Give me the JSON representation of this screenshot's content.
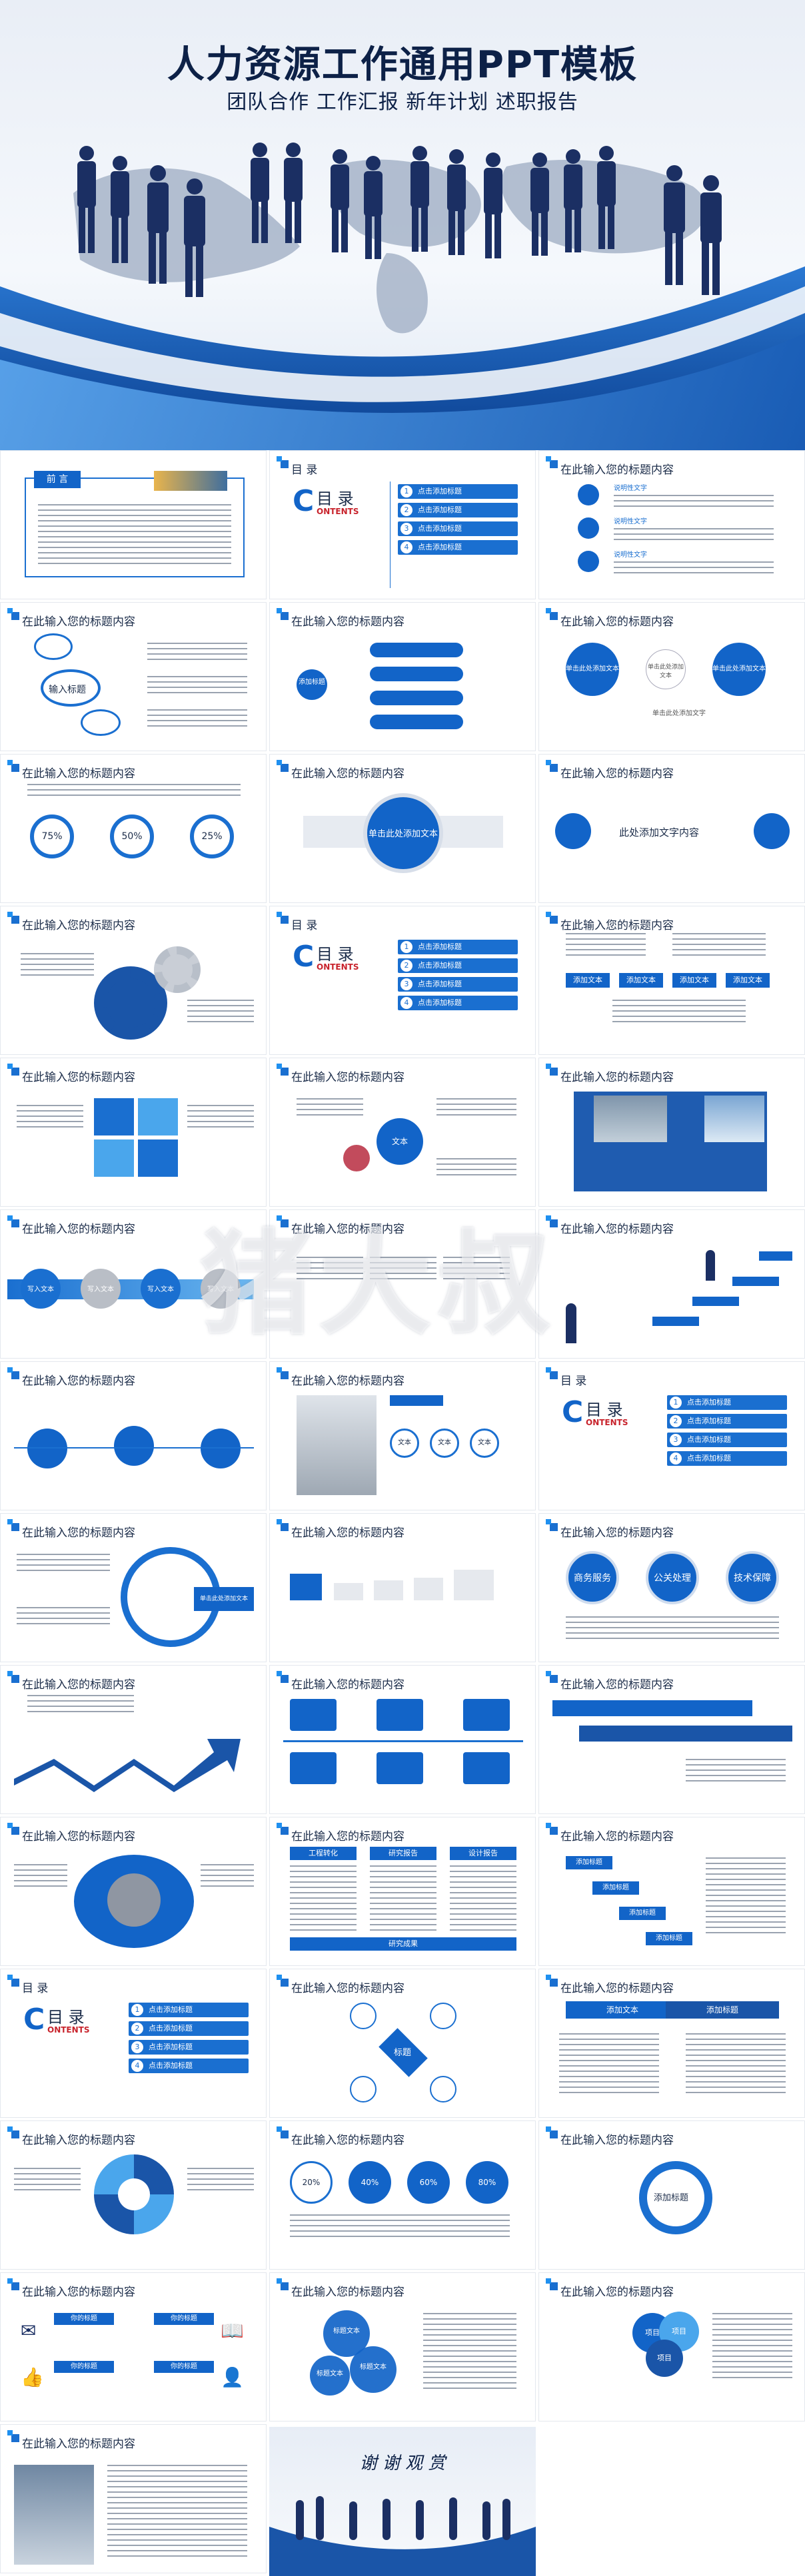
{
  "hero": {
    "title": "人力资源工作通用PPT模板",
    "subtitle": "团队合作  工作汇报  新年计划  述职报告"
  },
  "slides": {
    "generic_title": "在此输入您的标题内容",
    "toc_title": "目 录",
    "preface_title": "前 言",
    "contents_letter": "C",
    "contents_word": "目 录",
    "contents_en": "ONTENTS",
    "toc_item": "点击添加标题",
    "toc_numbers": [
      "1",
      "2",
      "3",
      "4"
    ],
    "explain_text": "说明性文字",
    "input_title": "输入标题",
    "add_title": "添加标题",
    "add_text": "添加文本",
    "click_add_text": "单击此处添加文本",
    "click_add": "单击此处添加文字",
    "add_text_content": "此处添加文字内容",
    "percents": [
      "75%",
      "50%",
      "25%"
    ],
    "percents2": [
      "20%",
      "40%",
      "60%",
      "80%"
    ],
    "write_text": "写入文本",
    "services": [
      "商务服务",
      "公关处理",
      "技术保障"
    ],
    "research": [
      "工程转化",
      "研究报告",
      "设计报告"
    ],
    "research_result": "研究成果",
    "text_word": "文本",
    "title_word": "标题",
    "item_word": "项目",
    "title_text_word": "标题文本",
    "your_title": "你的标题",
    "thanks": "谢 谢 观 赏",
    "watermark": "猪大叔"
  }
}
